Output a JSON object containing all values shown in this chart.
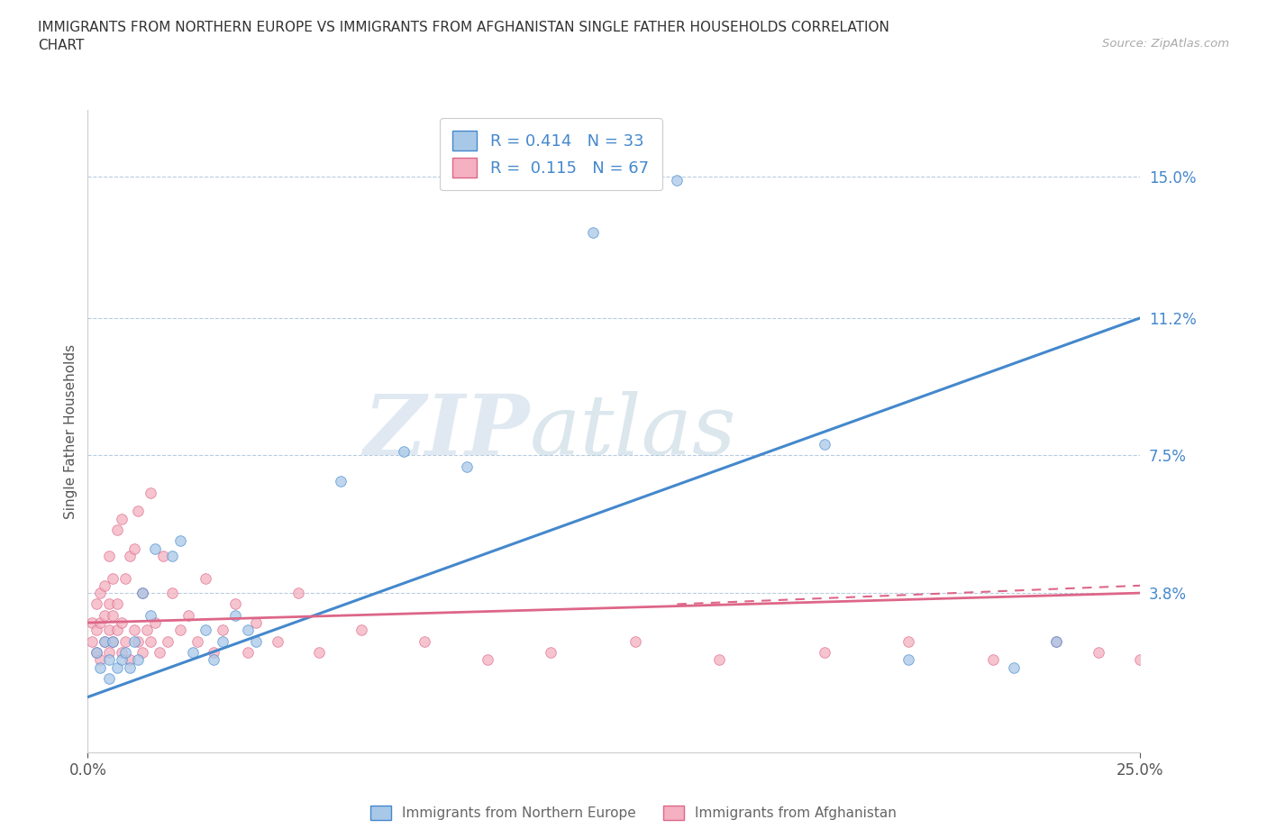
{
  "title": "IMMIGRANTS FROM NORTHERN EUROPE VS IMMIGRANTS FROM AFGHANISTAN SINGLE FATHER HOUSEHOLDS CORRELATION\nCHART",
  "source": "Source: ZipAtlas.com",
  "ylabel": "Single Father Households",
  "x_min": 0.0,
  "x_max": 0.25,
  "y_min": -0.005,
  "y_max": 0.168,
  "yticks": [
    0.038,
    0.075,
    0.112,
    0.15
  ],
  "ytick_labels": [
    "3.8%",
    "7.5%",
    "11.2%",
    "15.0%"
  ],
  "xticks": [
    0.0,
    0.25
  ],
  "xtick_labels": [
    "0.0%",
    "25.0%"
  ],
  "legend_r1_r": "R = ",
  "legend_r1_v": "0.414",
  "legend_r1_n": "  N = ",
  "legend_r1_nv": "33",
  "legend_r2_r": "R =  ",
  "legend_r2_v": "0.115",
  "legend_r2_n": "  N = ",
  "legend_r2_nv": "67",
  "color_blue": "#a8c8e8",
  "color_pink": "#f4b0c0",
  "line_color_blue": "#4488cc",
  "line_color_pink": "#dd6688",
  "watermark_zip": "ZIP",
  "watermark_atlas": "atlas",
  "legend_label_blue": "Immigrants from Northern Europe",
  "legend_label_pink": "Immigrants from Afghanistan",
  "blue_scatter_x": [
    0.002,
    0.003,
    0.004,
    0.005,
    0.005,
    0.006,
    0.007,
    0.008,
    0.009,
    0.01,
    0.011,
    0.012,
    0.013,
    0.015,
    0.016,
    0.02,
    0.022,
    0.025,
    0.028,
    0.03,
    0.032,
    0.035,
    0.038,
    0.04,
    0.06,
    0.075,
    0.09,
    0.12,
    0.14,
    0.175,
    0.195,
    0.22,
    0.23
  ],
  "blue_scatter_y": [
    0.022,
    0.018,
    0.025,
    0.02,
    0.015,
    0.025,
    0.018,
    0.02,
    0.022,
    0.018,
    0.025,
    0.02,
    0.038,
    0.032,
    0.05,
    0.048,
    0.052,
    0.022,
    0.028,
    0.02,
    0.025,
    0.032,
    0.028,
    0.025,
    0.068,
    0.076,
    0.072,
    0.135,
    0.149,
    0.078,
    0.02,
    0.018,
    0.025
  ],
  "pink_scatter_x": [
    0.001,
    0.001,
    0.002,
    0.002,
    0.002,
    0.003,
    0.003,
    0.003,
    0.004,
    0.004,
    0.004,
    0.005,
    0.005,
    0.005,
    0.005,
    0.006,
    0.006,
    0.006,
    0.007,
    0.007,
    0.007,
    0.008,
    0.008,
    0.008,
    0.009,
    0.009,
    0.01,
    0.01,
    0.011,
    0.011,
    0.012,
    0.012,
    0.013,
    0.013,
    0.014,
    0.015,
    0.015,
    0.016,
    0.017,
    0.018,
    0.019,
    0.02,
    0.022,
    0.024,
    0.026,
    0.028,
    0.03,
    0.032,
    0.035,
    0.038,
    0.04,
    0.045,
    0.05,
    0.055,
    0.065,
    0.08,
    0.095,
    0.11,
    0.13,
    0.15,
    0.175,
    0.195,
    0.215,
    0.23,
    0.24,
    0.25,
    0.255
  ],
  "pink_scatter_y": [
    0.025,
    0.03,
    0.022,
    0.028,
    0.035,
    0.02,
    0.03,
    0.038,
    0.025,
    0.032,
    0.04,
    0.022,
    0.028,
    0.035,
    0.048,
    0.025,
    0.032,
    0.042,
    0.028,
    0.035,
    0.055,
    0.022,
    0.03,
    0.058,
    0.025,
    0.042,
    0.02,
    0.048,
    0.028,
    0.05,
    0.025,
    0.06,
    0.022,
    0.038,
    0.028,
    0.025,
    0.065,
    0.03,
    0.022,
    0.048,
    0.025,
    0.038,
    0.028,
    0.032,
    0.025,
    0.042,
    0.022,
    0.028,
    0.035,
    0.022,
    0.03,
    0.025,
    0.038,
    0.022,
    0.028,
    0.025,
    0.02,
    0.022,
    0.025,
    0.02,
    0.022,
    0.025,
    0.02,
    0.025,
    0.022,
    0.02,
    0.022
  ],
  "blue_line_x0": 0.0,
  "blue_line_y0": 0.01,
  "blue_line_x1": 0.25,
  "blue_line_y1": 0.112,
  "pink_line_x0": 0.0,
  "pink_line_y0": 0.03,
  "pink_line_x1": 0.25,
  "pink_line_y1": 0.038
}
